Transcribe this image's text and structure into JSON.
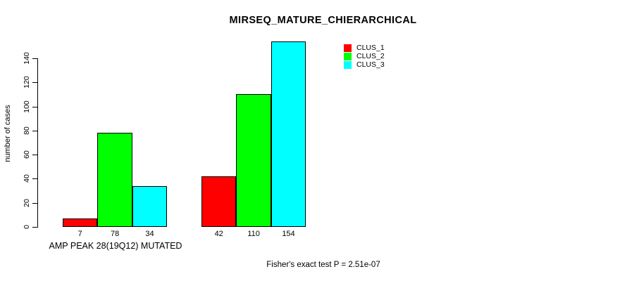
{
  "page": {
    "background_color": "#ffffff",
    "text_color": "#000000"
  },
  "chart_data": {
    "type": "bar",
    "title": "MIRSEQ_MATURE_CHIERARCHICAL",
    "ylabel": "number of cases",
    "xlabel": "",
    "footer": "Fisher's exact test P = 2.51e-07",
    "yticks": [
      0,
      20,
      40,
      60,
      80,
      100,
      120,
      140
    ],
    "ylim": [
      0,
      154
    ],
    "grid": false,
    "legend_position": "top-right",
    "categories": [
      "AMP PEAK 28(19Q12) MUTATED",
      ""
    ],
    "series": [
      {
        "name": "CLUS_1",
        "color": "#ff0000",
        "values": [
          7,
          42
        ]
      },
      {
        "name": "CLUS_2",
        "color": "#00ff00",
        "values": [
          78,
          110
        ]
      },
      {
        "name": "CLUS_3",
        "color": "#00ffff",
        "values": [
          34,
          154
        ]
      }
    ],
    "bar_labels": [
      [
        "7",
        "78",
        "34"
      ],
      [
        "42",
        "110",
        "154"
      ]
    ]
  }
}
